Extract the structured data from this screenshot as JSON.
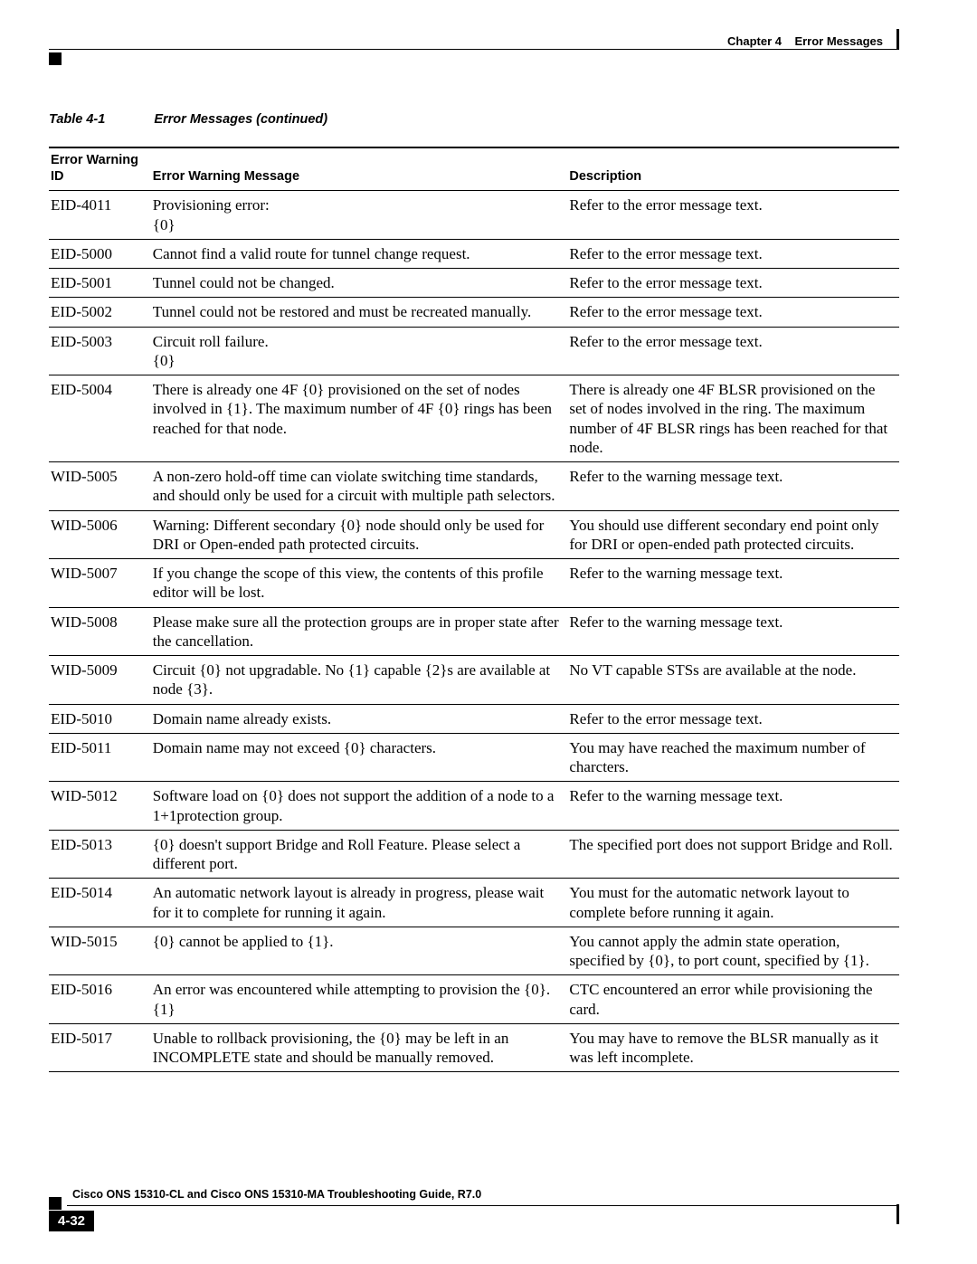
{
  "header": {
    "chapter_label": "Chapter 4",
    "chapter_title": "Error Messages"
  },
  "caption": {
    "number": "Table 4-1",
    "text": "Error Messages (continued)"
  },
  "table": {
    "columns": {
      "id": "Error Warning ID",
      "msg": "Error Warning Message",
      "desc": "Description"
    },
    "rows": [
      {
        "id": "EID-4011",
        "msg": "Provisioning error:\n{0}",
        "desc": "Refer to the error message text."
      },
      {
        "id": "EID-5000",
        "msg": "Cannot find a valid route for tunnel change request.",
        "desc": "Refer to the error message text."
      },
      {
        "id": "EID-5001",
        "msg": "Tunnel could not be changed.",
        "desc": "Refer to the error message text."
      },
      {
        "id": "EID-5002",
        "msg": "Tunnel could not be restored and must be recreated manually.",
        "desc": "Refer to the error message text."
      },
      {
        "id": "EID-5003",
        "msg": "Circuit roll failure.\n{0}",
        "desc": "Refer to the error message text."
      },
      {
        "id": "EID-5004",
        "msg": "There is already one 4F {0} provisioned on the set of nodes involved in {1}. The maximum number of 4F {0} rings has been reached for that node.",
        "desc": "There is already one 4F BLSR provisioned on the set of nodes involved in the ring. The maximum number of 4F BLSR rings has been reached for that node."
      },
      {
        "id": "WID-5005",
        "msg": "A non-zero hold-off time can violate switching time standards, and should only be used for a circuit with multiple path selectors.",
        "desc": "Refer to the warning message text."
      },
      {
        "id": "WID-5006",
        "msg": "Warning: Different secondary {0} node should only be used for DRI or Open-ended path protected circuits.",
        "desc": "You should use different secondary end point only for DRI or open-ended path protected circuits."
      },
      {
        "id": "WID-5007",
        "msg": "If you change the scope of this view, the contents of this profile editor will be lost.",
        "desc": "Refer to the warning message text."
      },
      {
        "id": "WID-5008",
        "msg": "Please make sure all the protection groups are in proper state after the cancellation.",
        "desc": "Refer to the warning message text."
      },
      {
        "id": "WID-5009",
        "msg": "Circuit {0} not upgradable. No {1} capable {2}s are available at node {3}.",
        "desc": "No VT capable STSs are available at the node."
      },
      {
        "id": "EID-5010",
        "msg": "Domain name already exists.",
        "desc": "Refer to the error message text."
      },
      {
        "id": "EID-5011",
        "msg": "Domain name may not exceed {0} characters.",
        "desc": "You may have reached the maximum number of charcters."
      },
      {
        "id": "WID-5012",
        "msg": "Software load on {0} does not support the addition of a node to a 1+1protection group.",
        "desc": "Refer to the warning message text."
      },
      {
        "id": "EID-5013",
        "msg": "{0} doesn't support Bridge and Roll Feature. Please select a different port.",
        "desc": "The specified port does not support Bridge and Roll."
      },
      {
        "id": "EID-5014",
        "msg": "An automatic network layout is already in progress, please wait for it to complete for running it again.",
        "desc": "You must for the automatic network layout to complete before running it again."
      },
      {
        "id": "WID-5015",
        "msg": "{0} cannot be applied to {1}.",
        "desc": "You cannot apply the admin state operation, specified by {0}, to port count, specified by {1}."
      },
      {
        "id": "EID-5016",
        "msg": "An error was encountered while attempting to provision the {0}. {1}",
        "desc": "CTC encountered an error while provisioning the card."
      },
      {
        "id": "EID-5017",
        "msg": "Unable to rollback provisioning, the {0} may be left in an INCOMPLETE state and should be manually removed.",
        "desc": "You may have to remove the BLSR manually as it was left incomplete."
      }
    ]
  },
  "footer": {
    "doc_title": "Cisco ONS 15310-CL and Cisco ONS 15310-MA Troubleshooting Guide, R7.0",
    "page_number": "4-32"
  }
}
